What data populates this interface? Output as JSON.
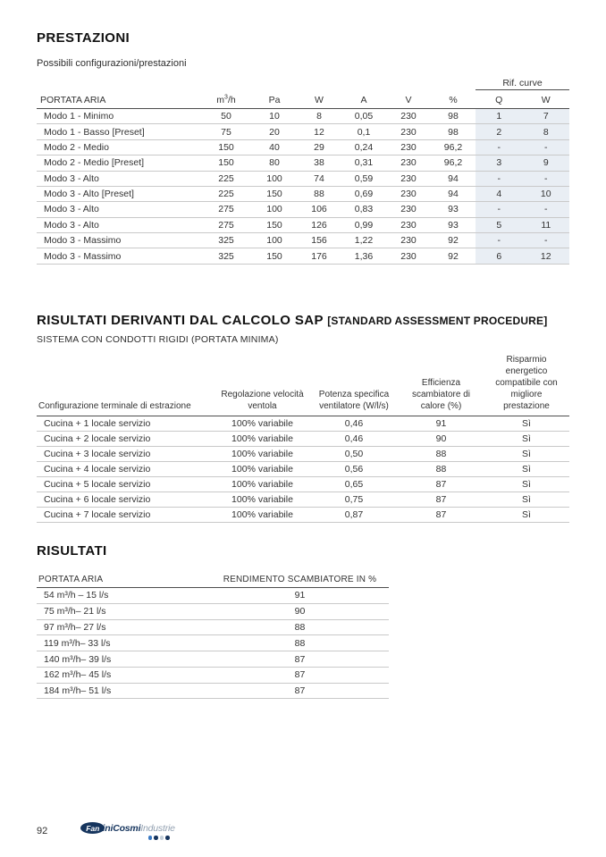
{
  "prestazioni": {
    "title": "PRESTAZIONI",
    "subtitle": "Possibili configurazioni/prestazioni",
    "table": {
      "group_header": "Rif. curve",
      "columns": [
        "PORTATA ARIA",
        "m3h",
        "Pa",
        "W",
        "A",
        "V",
        "%",
        "Q",
        "W"
      ],
      "unit_main": "m",
      "unit_sup": "3",
      "unit_tail": "/h",
      "highlight_color": "#e9eef4",
      "rows": [
        [
          "Modo 1 - Minimo",
          "50",
          "10",
          "8",
          "0,05",
          "230",
          "98",
          "1",
          "7"
        ],
        [
          "Modo 1 - Basso [Preset]",
          "75",
          "20",
          "12",
          "0,1",
          "230",
          "98",
          "2",
          "8"
        ],
        [
          "Modo 2 - Medio",
          "150",
          "40",
          "29",
          "0,24",
          "230",
          "96,2",
          "-",
          "-"
        ],
        [
          "Modo 2 - Medio [Preset]",
          "150",
          "80",
          "38",
          "0,31",
          "230",
          "96,2",
          "3",
          "9"
        ],
        [
          "Modo 3 - Alto",
          "225",
          "100",
          "74",
          "0,59",
          "230",
          "94",
          "-",
          "-"
        ],
        [
          "Modo 3 - Alto [Preset]",
          "225",
          "150",
          "88",
          "0,69",
          "230",
          "94",
          "4",
          "10"
        ],
        [
          "Modo 3 - Alto",
          "275",
          "100",
          "106",
          "0,83",
          "230",
          "93",
          "-",
          "-"
        ],
        [
          "Modo 3 - Alto",
          "275",
          "150",
          "126",
          "0,99",
          "230",
          "93",
          "5",
          "11"
        ],
        [
          "Modo 3 - Massimo",
          "325",
          "100",
          "156",
          "1,22",
          "230",
          "92",
          "-",
          "-"
        ],
        [
          "Modo 3 - Massimo",
          "325",
          "150",
          "176",
          "1,36",
          "230",
          "92",
          "6",
          "12"
        ]
      ]
    }
  },
  "sap": {
    "title_main": "RISULTATI DERIVANTI DAL CALCOLO SAP ",
    "title_paren": "[STANDARD ASSESSMENT PROCEDURE]",
    "subtitle": "SISTEMA CON CONDOTTI RIGIDI (PORTATA MINIMA)",
    "table": {
      "columns": [
        "Configurazione terminale di estrazione",
        "Regolazione velocità ventola",
        "Potenza specifica ventilatore (W/l/s)",
        "Efficienza scambiatore di calore (%)",
        "Risparmio energetico compatibile con migliore prestazione"
      ],
      "rows": [
        [
          "Cucina + 1 locale servizio",
          "100% variabile",
          "0,46",
          "91",
          "Sì"
        ],
        [
          "Cucina + 2 locale servizio",
          "100% variabile",
          "0,46",
          "90",
          "Sì"
        ],
        [
          "Cucina + 3 locale servizio",
          "100% variabile",
          "0,50",
          "88",
          "Sì"
        ],
        [
          "Cucina + 4 locale servizio",
          "100% variabile",
          "0,56",
          "88",
          "Sì"
        ],
        [
          "Cucina + 5 locale servizio",
          "100% variabile",
          "0,65",
          "87",
          "Sì"
        ],
        [
          "Cucina + 6 locale servizio",
          "100% variabile",
          "0,75",
          "87",
          "Sì"
        ],
        [
          "Cucina + 7 locale servizio",
          "100% variabile",
          "0,87",
          "87",
          "Sì"
        ]
      ]
    }
  },
  "risultati": {
    "title": "RISULTATI",
    "table": {
      "columns": [
        "PORTATA ARIA",
        "RENDIMENTO SCAMBIATORE IN %"
      ],
      "rows": [
        [
          "54 m³/h – 15 l/s",
          "91"
        ],
        [
          "75 m³/h– 21 l/s",
          "90"
        ],
        [
          "97 m³/h– 27 l/s",
          "88"
        ],
        [
          "119 m³/h– 33 l/s",
          "88"
        ],
        [
          "140 m³/h– 39 l/s",
          "87"
        ],
        [
          "162 m³/h– 45 l/s",
          "87"
        ],
        [
          "184 m³/h– 51 l/s",
          "87"
        ]
      ]
    }
  },
  "footer": {
    "page_number": "92",
    "logo": {
      "oval_text": "Fan",
      "brand_bold": "tiniCosmi",
      "brand_light": "Industrie",
      "navy": "#16355e",
      "light_text": "#93a1b1",
      "dots": [
        "#3a79c3",
        "#16355e",
        "#c4cfd9",
        "#16355e"
      ]
    }
  }
}
